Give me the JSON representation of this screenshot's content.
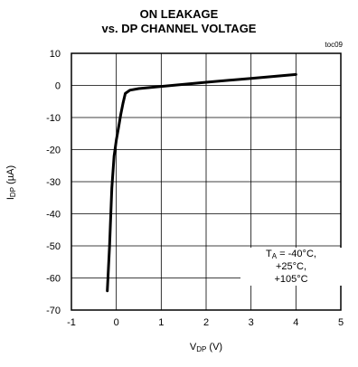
{
  "tag": "toc09",
  "chart_data": {
    "type": "line",
    "title_line1": "ON LEAKAGE",
    "title_line2": "vs. DP CHANNEL VOLTAGE",
    "xlabel_main": "V",
    "xlabel_sub": "DP",
    "xlabel_unit": "(V)",
    "ylabel_main": "I",
    "ylabel_sub": "DP",
    "ylabel_unit": "(µA)",
    "xlim": [
      -1,
      5
    ],
    "ylim": [
      -70,
      10
    ],
    "xticks": [
      -1,
      0,
      1,
      2,
      3,
      4,
      5
    ],
    "yticks": [
      10,
      0,
      -10,
      -20,
      -30,
      -40,
      -50,
      -60,
      -70
    ],
    "grid": true,
    "annotation": {
      "line1_main": "T",
      "line1_sub": "A",
      "line1_rest": " = -40°C,",
      "line2": "+25°C,",
      "line3": "+105°C"
    },
    "series": [
      {
        "x": [
          -0.2,
          -0.15,
          -0.1,
          -0.05,
          0.0,
          0.05,
          0.1,
          0.15,
          0.2,
          0.3,
          0.5,
          1.0,
          2.0,
          3.0,
          4.0
        ],
        "y": [
          -64,
          -50,
          -32,
          -22,
          -17,
          -13,
          -9,
          -5.5,
          -2.5,
          -1.5,
          -1.0,
          -0.3,
          1.0,
          2.2,
          3.4
        ]
      }
    ]
  }
}
